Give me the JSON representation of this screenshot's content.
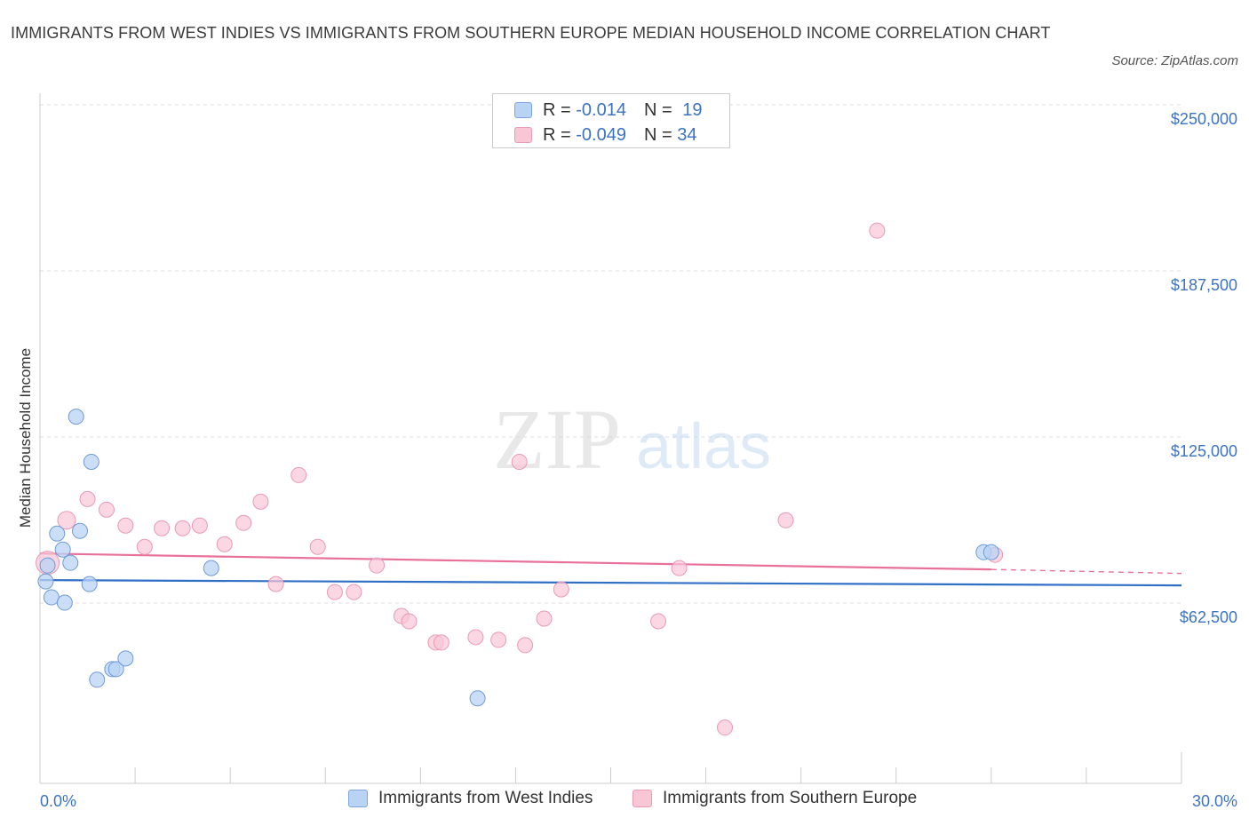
{
  "title": "IMMIGRANTS FROM WEST INDIES VS IMMIGRANTS FROM SOUTHERN EUROPE MEDIAN HOUSEHOLD INCOME CORRELATION CHART",
  "source": "Source: ZipAtlas.com",
  "watermark": {
    "zip": "ZIP",
    "atlas": "atlas"
  },
  "colors": {
    "blue": "#3b73c4",
    "blue_fill": "#b9d3f5",
    "blue_line": "#2f6fc6",
    "pink_fill": "#f8c6d5",
    "pink_line": "#e8709a",
    "grid": "#dddddd"
  },
  "legend": {
    "series1": {
      "r_label": "R = ",
      "r_value": "-0.014",
      "n_label": "N = ",
      "n_value": "19"
    },
    "series2": {
      "r_label": "R = ",
      "r_value": "-0.049",
      "n_label": "N = ",
      "n_value": "34"
    }
  },
  "bottom_legend": [
    "Immigrants from West Indies",
    "Immigrants from Southern Europe"
  ],
  "chart_data": {
    "type": "scatter",
    "title": "IMMIGRANTS FROM WEST INDIES VS IMMIGRANTS FROM SOUTHERN EUROPE MEDIAN HOUSEHOLD INCOME CORRELATION CHART",
    "xlabel": "",
    "ylabel": "Median Household Income",
    "xlim": [
      0,
      30
    ],
    "ylim": [
      0,
      250000
    ],
    "x_tick_labels": [
      "0.0%",
      "30.0%"
    ],
    "y_ticks": [
      62500,
      125000,
      187500,
      250000
    ],
    "y_tick_labels": [
      "$62,500",
      "$125,000",
      "$187,500",
      "$250,000"
    ],
    "series": [
      {
        "name": "Immigrants from West Indies",
        "color": "#b9d3f5",
        "points": [
          [
            0.15,
            76000
          ],
          [
            0.2,
            82000
          ],
          [
            0.3,
            70000
          ],
          [
            0.45,
            94000
          ],
          [
            0.6,
            88000
          ],
          [
            0.65,
            68000
          ],
          [
            0.8,
            83000
          ],
          [
            0.95,
            138000
          ],
          [
            1.05,
            95000
          ],
          [
            1.3,
            75000
          ],
          [
            1.35,
            121000
          ],
          [
            1.5,
            39000
          ],
          [
            1.9,
            43000
          ],
          [
            2.0,
            43000
          ],
          [
            2.25,
            47000
          ],
          [
            4.5,
            81000
          ],
          [
            11.5,
            32000
          ],
          [
            24.8,
            87000
          ],
          [
            25.0,
            87000
          ]
        ],
        "trend": {
          "x": [
            0,
            30
          ],
          "y": [
            76500,
            74500
          ]
        }
      },
      {
        "name": "Immigrants from Southern Europe",
        "color": "#f8c6d5",
        "points": [
          [
            0.2,
            83000
          ],
          [
            0.7,
            99000
          ],
          [
            1.25,
            107000
          ],
          [
            1.75,
            103000
          ],
          [
            2.25,
            97000
          ],
          [
            2.75,
            89000
          ],
          [
            3.2,
            96000
          ],
          [
            3.75,
            96000
          ],
          [
            4.2,
            97000
          ],
          [
            4.85,
            90000
          ],
          [
            5.35,
            98000
          ],
          [
            5.8,
            106000
          ],
          [
            6.2,
            75000
          ],
          [
            6.8,
            116000
          ],
          [
            7.3,
            89000
          ],
          [
            7.75,
            72000
          ],
          [
            8.25,
            72000
          ],
          [
            8.85,
            82000
          ],
          [
            9.5,
            63000
          ],
          [
            9.7,
            61000
          ],
          [
            10.4,
            53000
          ],
          [
            10.55,
            53000
          ],
          [
            11.45,
            55000
          ],
          [
            12.05,
            54000
          ],
          [
            12.6,
            121000
          ],
          [
            12.75,
            52000
          ],
          [
            13.25,
            62000
          ],
          [
            13.7,
            73000
          ],
          [
            16.25,
            61000
          ],
          [
            16.8,
            81000
          ],
          [
            18.0,
            21000
          ],
          [
            19.6,
            99000
          ],
          [
            22.0,
            208000
          ],
          [
            25.1,
            86000
          ]
        ],
        "trend": {
          "x": [
            0,
            25.0
          ],
          "y": [
            86500,
            80500
          ]
        },
        "trend_dashed": {
          "x": [
            25.0,
            30
          ],
          "y": [
            80500,
            79000
          ]
        }
      }
    ]
  }
}
